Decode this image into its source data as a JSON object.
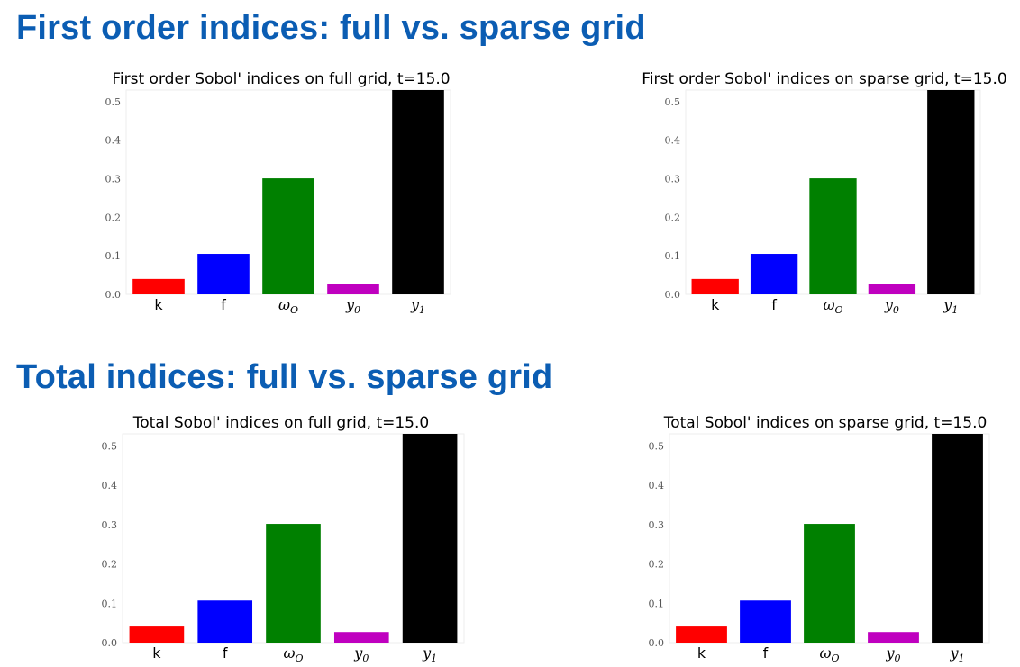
{
  "sections": [
    {
      "title": "First order indices: full vs. sparse grid"
    },
    {
      "title": "Total indices: full vs. sparse grid"
    }
  ],
  "colors": {
    "heading": "#0b5db3",
    "k": "#ff0000",
    "f": "#0000ff",
    "omega_O": "#008000",
    "y0": "#bf00bf",
    "y1": "#000000"
  },
  "chart_data": [
    {
      "type": "bar",
      "title": "First order Sobol' indices on full grid, t=15.0",
      "categories": [
        "k",
        "f",
        "ωO",
        "y0",
        "y1"
      ],
      "values": [
        0.04,
        0.105,
        0.301,
        0.026,
        0.53
      ],
      "yticks": [
        "0.0",
        "0.1",
        "0.2",
        "0.3",
        "0.4",
        "0.5"
      ],
      "ylim": [
        0,
        0.53
      ],
      "xlabel": "",
      "ylabel": "",
      "grid": false,
      "legend": "none"
    },
    {
      "type": "bar",
      "title": "First order Sobol' indices on sparse grid, t=15.0",
      "categories": [
        "k",
        "f",
        "ωO",
        "y0",
        "y1"
      ],
      "values": [
        0.04,
        0.105,
        0.301,
        0.026,
        0.53
      ],
      "yticks": [
        "0.0",
        "0.1",
        "0.2",
        "0.3",
        "0.4",
        "0.5"
      ],
      "ylim": [
        0,
        0.53
      ],
      "xlabel": "",
      "ylabel": "",
      "grid": false,
      "legend": "none"
    },
    {
      "type": "bar",
      "title": "Total Sobol' indices on full grid, t=15.0",
      "categories": [
        "k",
        "f",
        "ωO",
        "y0",
        "y1"
      ],
      "values": [
        0.041,
        0.107,
        0.302,
        0.027,
        0.531
      ],
      "yticks": [
        "0.0",
        "0.1",
        "0.2",
        "0.3",
        "0.4",
        "0.5"
      ],
      "ylim": [
        0,
        0.531
      ],
      "xlabel": "",
      "ylabel": "",
      "grid": false,
      "legend": "none"
    },
    {
      "type": "bar",
      "title": "Total Sobol' indices on sparse grid, t=15.0",
      "categories": [
        "k",
        "f",
        "ωO",
        "y0",
        "y1"
      ],
      "values": [
        0.041,
        0.107,
        0.302,
        0.027,
        0.531
      ],
      "yticks": [
        "0.0",
        "0.1",
        "0.2",
        "0.3",
        "0.4",
        "0.5"
      ],
      "ylim": [
        0,
        0.531
      ],
      "xlabel": "",
      "ylabel": "",
      "grid": false,
      "legend": "none"
    }
  ]
}
